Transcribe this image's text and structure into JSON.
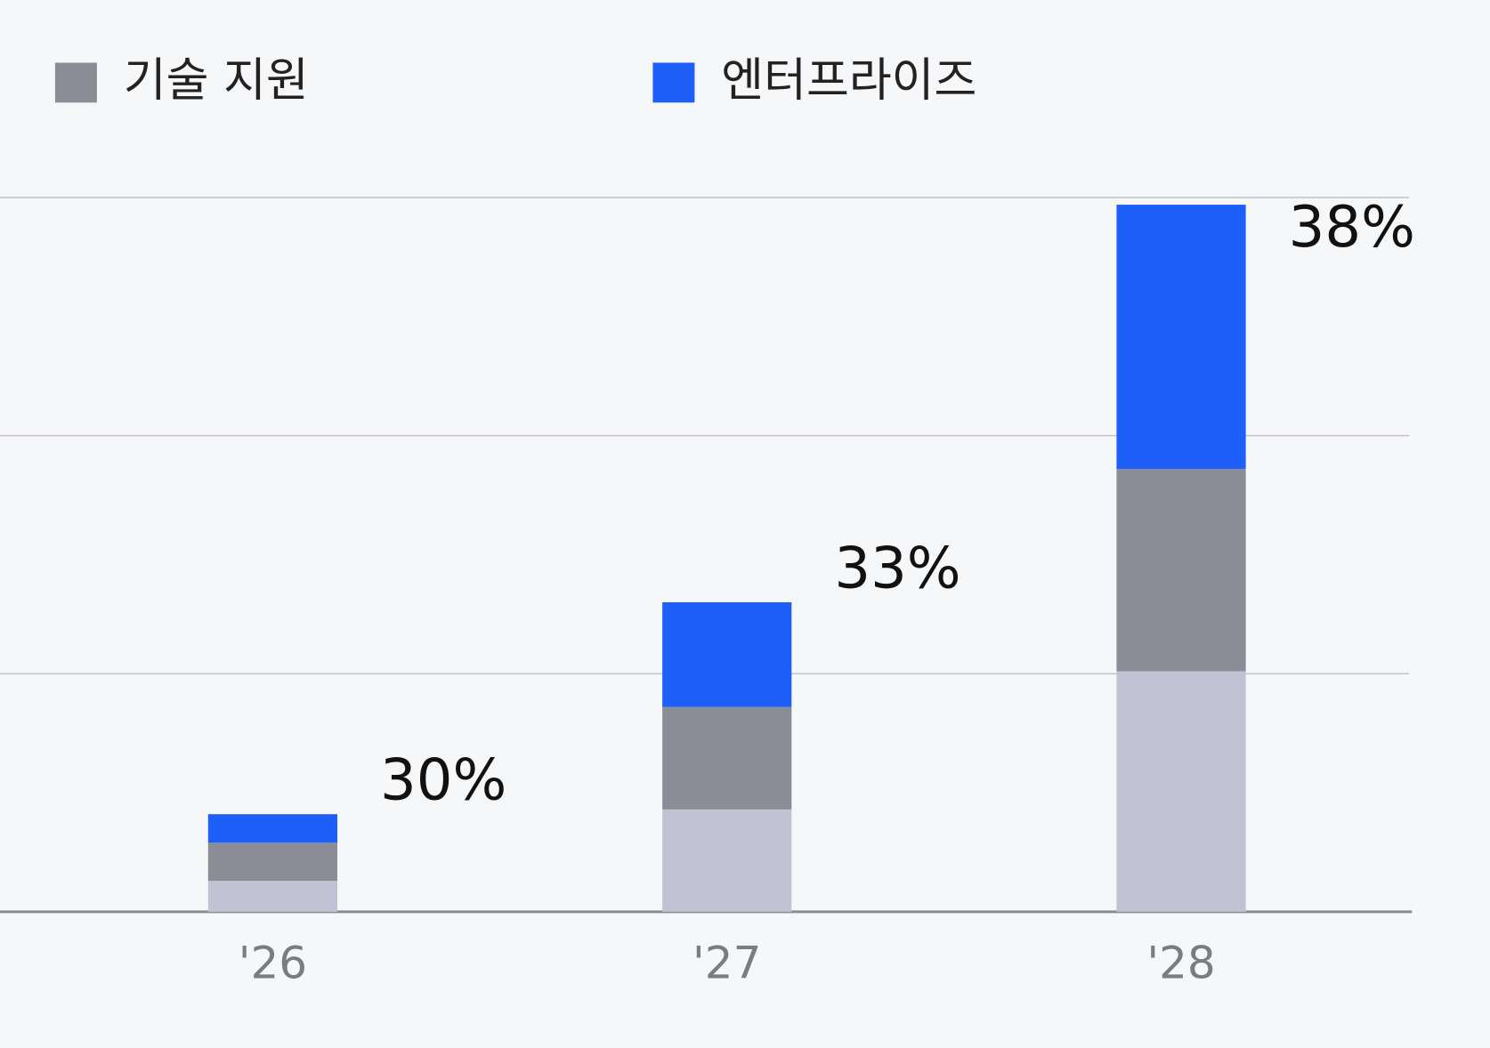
{
  "chart_data": {
    "type": "stacked_bar",
    "categories": [
      "'26",
      "'27",
      "'28"
    ],
    "series": [
      {
        "name": null,
        "color": "#c1c2d4",
        "values": [
          0.13,
          0.43,
          1.01
        ]
      },
      {
        "name": "기술 지원",
        "color": "#8a8d96",
        "values": [
          0.16,
          0.43,
          0.85
        ]
      },
      {
        "name": "엔터프라이즈",
        "color": "#1e5ffa",
        "values": [
          0.12,
          0.44,
          1.11
        ]
      }
    ],
    "annotations": [
      {
        "value": 30,
        "label": "30%"
      },
      {
        "value": 33,
        "label": "33%"
      },
      {
        "value": 38,
        "label": "38%"
      }
    ],
    "ylim": [
      0,
      3
    ],
    "yticks": [
      0,
      1,
      2,
      3
    ],
    "grid": true,
    "legend": "top-left"
  }
}
